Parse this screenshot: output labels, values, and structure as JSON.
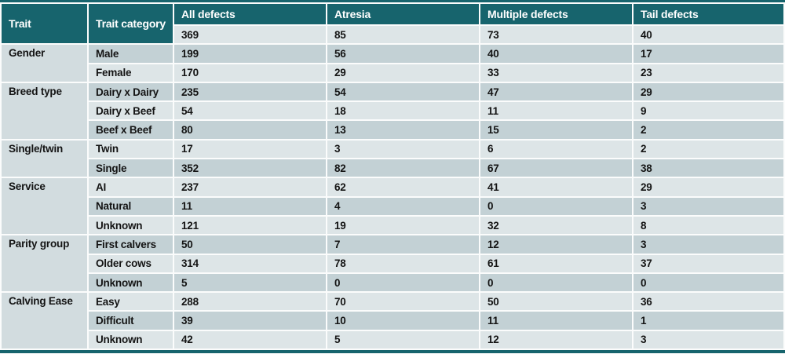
{
  "colors": {
    "header_bg": "#17646d",
    "header_text": "#ffffff",
    "row_light": "#dde5e7",
    "row_dark": "#c3d1d5",
    "trait_cell_bg": "#d2dcdf",
    "body_text": "#141414"
  },
  "chart_data": {
    "type": "table",
    "columns": [
      "Trait",
      "Trait category",
      "All defects",
      "Atresia",
      "Multiple defects",
      "Tail defects"
    ],
    "total_row": {
      "trait": "",
      "category": "",
      "values": [
        "369",
        "85",
        "73",
        "40"
      ]
    },
    "groups": [
      {
        "trait": "Gender",
        "rows": [
          {
            "category": "Male",
            "values": [
              "199",
              "56",
              "40",
              "17"
            ]
          },
          {
            "category": "Female",
            "values": [
              "170",
              "29",
              "33",
              "23"
            ]
          }
        ]
      },
      {
        "trait": "Breed type",
        "rows": [
          {
            "category": "Dairy x Dairy",
            "values": [
              "235",
              "54",
              "47",
              "29"
            ]
          },
          {
            "category": "Dairy x Beef",
            "values": [
              "54",
              "18",
              "11",
              "9"
            ]
          },
          {
            "category": "Beef x Beef",
            "values": [
              "80",
              "13",
              "15",
              "2"
            ]
          }
        ]
      },
      {
        "trait": "Single/twin",
        "rows": [
          {
            "category": "Twin",
            "values": [
              "17",
              "3",
              "6",
              "2"
            ]
          },
          {
            "category": "Single",
            "values": [
              "352",
              "82",
              "67",
              "38"
            ]
          }
        ]
      },
      {
        "trait": "Service",
        "rows": [
          {
            "category": "AI",
            "values": [
              "237",
              "62",
              "41",
              "29"
            ]
          },
          {
            "category": "Natural",
            "values": [
              "11",
              "4",
              "0",
              "3"
            ]
          },
          {
            "category": "Unknown",
            "values": [
              "121",
              "19",
              "32",
              "8"
            ]
          }
        ]
      },
      {
        "trait": "Parity group",
        "rows": [
          {
            "category": "First calvers",
            "values": [
              "50",
              "7",
              "12",
              "3"
            ]
          },
          {
            "category": "Older cows",
            "values": [
              "314",
              "78",
              "61",
              "37"
            ]
          },
          {
            "category": "Unknown",
            "values": [
              "5",
              "0",
              "0",
              "0"
            ]
          }
        ]
      },
      {
        "trait": "Calving Ease",
        "rows": [
          {
            "category": "Easy",
            "values": [
              "288",
              "70",
              "50",
              "36"
            ]
          },
          {
            "category": "Difficult",
            "values": [
              "39",
              "10",
              "11",
              "1"
            ]
          },
          {
            "category": "Unknown",
            "values": [
              "42",
              "5",
              "12",
              "3"
            ]
          }
        ]
      }
    ]
  }
}
